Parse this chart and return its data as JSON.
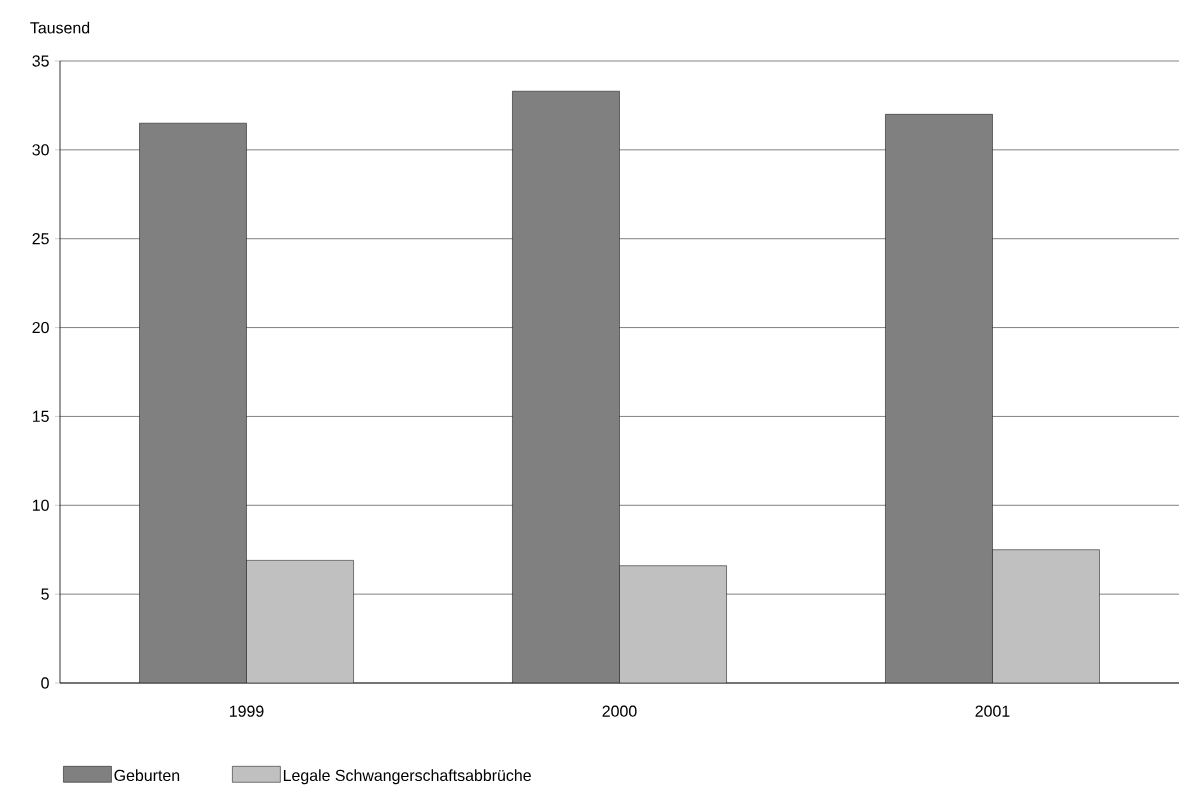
{
  "chart_data": {
    "type": "bar",
    "ylabel": "Tausend",
    "categories": [
      "1999",
      "2000",
      "2001"
    ],
    "series": [
      {
        "name": "Geburten",
        "color": "#808080",
        "values": [
          31.5,
          33.3,
          32.0
        ]
      },
      {
        "name": "Legale Schwangerschaftsabbrüche",
        "color": "#c0c0c0",
        "values": [
          6.9,
          6.6,
          7.5
        ]
      }
    ],
    "ylim": [
      0,
      35
    ],
    "yticks": [
      0,
      5,
      10,
      15,
      20,
      25,
      30,
      35
    ],
    "grid": "y",
    "legend": "bottom left"
  }
}
